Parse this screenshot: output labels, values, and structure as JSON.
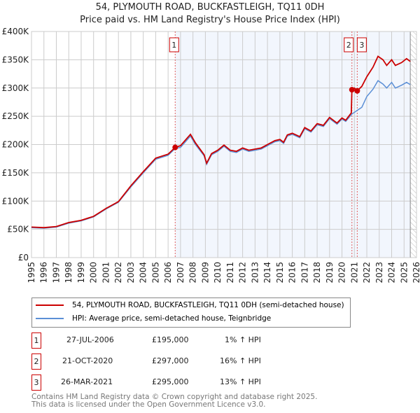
{
  "chart_data": {
    "type": "line",
    "title": "54, PLYMOUTH ROAD, BUCKFASTLEIGH, TQ11 0DH",
    "subtitle": "Price paid vs. HM Land Registry's House Price Index (HPI)",
    "xlim": [
      1995,
      2026
    ],
    "ylim": [
      0,
      400000
    ],
    "y_ticks": [
      {
        "v": 0,
        "label": "£0"
      },
      {
        "v": 50000,
        "label": "£50K"
      },
      {
        "v": 100000,
        "label": "£100K"
      },
      {
        "v": 150000,
        "label": "£150K"
      },
      {
        "v": 200000,
        "label": "£200K"
      },
      {
        "v": 250000,
        "label": "£250K"
      },
      {
        "v": 300000,
        "label": "£300K"
      },
      {
        "v": 350000,
        "label": "£350K"
      },
      {
        "v": 400000,
        "label": "£400K"
      }
    ],
    "x_ticks": [
      "1995",
      "1996",
      "1997",
      "1998",
      "1999",
      "2000",
      "2001",
      "2002",
      "2003",
      "2004",
      "2005",
      "2006",
      "2007",
      "2008",
      "2009",
      "2010",
      "2011",
      "2012",
      "2013",
      "2014",
      "2015",
      "2016",
      "2017",
      "2018",
      "2019",
      "2020",
      "2021",
      "2022",
      "2023",
      "2024",
      "2025",
      "2026"
    ],
    "grid": true,
    "shaded_from": 2006.57,
    "hatched_from": 2025.5,
    "series": [
      {
        "name": "54, PLYMOUTH ROAD, BUCKFASTLEIGH, TQ11 0DH (semi-detached house)",
        "color": "#cc0000",
        "x": [
          1995,
          1996,
          1997,
          1998,
          1999,
          2000,
          2001,
          2002,
          2003,
          2004,
          2005,
          2006,
          2006.57,
          2007,
          2007.8,
          2008.2,
          2008.9,
          2009.1,
          2009.5,
          2010,
          2010.5,
          2011,
          2011.5,
          2012,
          2012.5,
          2013,
          2013.5,
          2014,
          2014.6,
          2015,
          2015.3,
          2015.6,
          2016,
          2016.6,
          2017,
          2017.5,
          2018,
          2018.5,
          2019,
          2019.6,
          2020,
          2020.3,
          2020.75,
          2020.8,
          2021.0,
          2021.23,
          2021.6,
          2022,
          2022.5,
          2022.9,
          2023.3,
          2023.6,
          2024,
          2024.3,
          2024.8,
          2025.2,
          2025.5
        ],
        "y": [
          54000,
          53000,
          55000,
          62000,
          66000,
          73000,
          87000,
          99000,
          127000,
          152000,
          176000,
          183000,
          195000,
          198000,
          218000,
          203000,
          182000,
          167000,
          184000,
          190000,
          199000,
          190000,
          188000,
          194000,
          190000,
          192000,
          194000,
          200000,
          207000,
          209000,
          204000,
          217000,
          220000,
          214000,
          230000,
          224000,
          237000,
          234000,
          248000,
          238000,
          247000,
          243000,
          256000,
          297000,
          300000,
          295000,
          303000,
          320000,
          337000,
          356000,
          350000,
          340000,
          350000,
          340000,
          345000,
          352000,
          347000
        ]
      },
      {
        "name": "HPI: Average price, semi-detached house, Teignbridge",
        "color": "#5b8fd6",
        "x": [
          1995,
          1996,
          1997,
          1998,
          1999,
          2000,
          2001,
          2002,
          2003,
          2004,
          2005,
          2006,
          2006.57,
          2007,
          2007.8,
          2008.2,
          2008.9,
          2009.1,
          2009.5,
          2010,
          2010.5,
          2011,
          2011.5,
          2012,
          2012.5,
          2013,
          2013.5,
          2014,
          2014.6,
          2015,
          2015.3,
          2015.6,
          2016,
          2016.6,
          2017,
          2017.5,
          2018,
          2018.5,
          2019,
          2019.6,
          2020,
          2020.3,
          2020.8,
          2021.2,
          2021.6,
          2022,
          2022.5,
          2022.9,
          2023.3,
          2023.6,
          2024,
          2024.3,
          2024.8,
          2025.2,
          2025.5
        ],
        "y": [
          53000,
          52000,
          54000,
          61000,
          65000,
          72000,
          86000,
          98000,
          125000,
          150000,
          174000,
          181000,
          193000,
          195000,
          215000,
          200000,
          180000,
          165000,
          182000,
          188000,
          197000,
          188000,
          186000,
          192000,
          188000,
          190000,
          192000,
          198000,
          205000,
          207000,
          202000,
          215000,
          218000,
          212000,
          228000,
          222000,
          235000,
          232000,
          246000,
          236000,
          245000,
          241000,
          254000,
          260000,
          266000,
          285000,
          298000,
          313000,
          307000,
          300000,
          310000,
          300000,
          305000,
          310000,
          306000
        ]
      }
    ],
    "sales": [
      {
        "label": "1",
        "x": 2006.57,
        "price": 195000,
        "date": "27-JUL-2006",
        "price_text": "£195,000",
        "hpi": "1% ↑ HPI"
      },
      {
        "label": "2",
        "x": 2020.8,
        "price": 297000,
        "date": "21-OCT-2020",
        "price_text": "£297,000",
        "hpi": "16% ↑ HPI"
      },
      {
        "label": "3",
        "x": 2021.23,
        "price": 295000,
        "date": "26-MAR-2021",
        "price_text": "£295,000",
        "hpi": "13% ↑ HPI"
      }
    ]
  },
  "footer": {
    "line1": "Contains HM Land Registry data © Crown copyright and database right 2025.",
    "line2": "This data is licensed under the Open Government Licence v3.0."
  }
}
